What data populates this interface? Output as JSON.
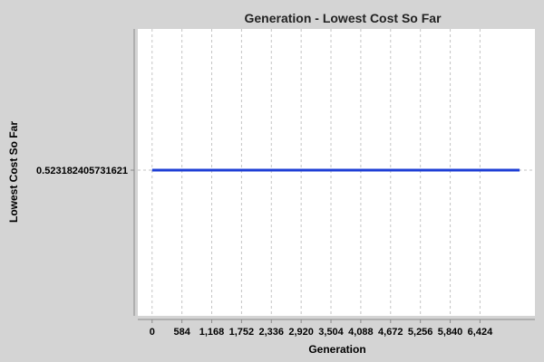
{
  "chart_data": {
    "type": "line",
    "title": "Generation - Lowest Cost So Far",
    "xlabel": "Generation",
    "ylabel": "Lowest Cost So Far",
    "x_ticks": [
      0,
      584,
      1168,
      1752,
      2336,
      2920,
      3504,
      4088,
      4672,
      5256,
      5840,
      6424
    ],
    "x_tick_labels": [
      "0",
      "584",
      "1,168",
      "1,752",
      "2,336",
      "2,920",
      "3,504",
      "4,088",
      "4,672",
      "5,256",
      "5,840",
      "6,424"
    ],
    "y_tick_labels": [
      "0.523182405731621"
    ],
    "xlim": [
      -280,
      7500
    ],
    "grid": true,
    "series": [
      {
        "color": "#1e3fd6",
        "x": [
          0,
          7200
        ],
        "y": [
          0.523182405731621,
          0.523182405731621
        ]
      }
    ]
  },
  "colors": {
    "background": "#d4d4d4",
    "plot_background": "#ffffff",
    "grid": "#c4c4c4",
    "line": "#1e3fd6"
  }
}
